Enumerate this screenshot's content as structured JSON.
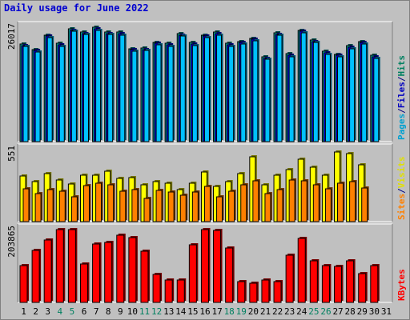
{
  "chart_data": {
    "title": "Daily usage for June 2022",
    "type": "bar",
    "categories": [
      "1",
      "2",
      "3",
      "4",
      "5",
      "6",
      "7",
      "8",
      "9",
      "10",
      "11",
      "12",
      "13",
      "14",
      "15",
      "16",
      "17",
      "18",
      "19",
      "20",
      "21",
      "22",
      "23",
      "24",
      "25",
      "26",
      "27",
      "28",
      "29",
      "30",
      "31"
    ],
    "weekend_days": [
      "4",
      "5",
      "11",
      "12",
      "18",
      "19",
      "25",
      "26"
    ],
    "panels": [
      {
        "id": "hits-files-pages",
        "max_label": "26017",
        "ymax": 26017,
        "legend": [
          {
            "text": "Pages",
            "color": "#00a0d0"
          },
          {
            "text": "/",
            "color": "#000080"
          },
          {
            "text": "Files",
            "color": "#0000c0"
          },
          {
            "text": "/",
            "color": "#000080"
          },
          {
            "text": "Hits",
            "color": "#008060"
          }
        ],
        "series": [
          {
            "name": "Hits",
            "color": "#00a0a0",
            "values": [
              21900,
              20700,
              23900,
              22000,
              25300,
              24600,
              25600,
              24600,
              24500,
              20900,
              21000,
              22300,
              22000,
              24200,
              22200,
              23900,
              24500,
              22000,
              22500,
              23200,
              19000,
              24400,
              19700,
              25000,
              22800,
              20200,
              19600,
              21500,
              22500,
              19300,
              0
            ]
          },
          {
            "name": "Files",
            "color": "#0000ff",
            "values": [
              21600,
              20400,
              23600,
              21700,
              25000,
              24300,
              25300,
              24300,
              24200,
              20600,
              20700,
              22000,
              21700,
              23900,
              21900,
              23600,
              24200,
              21700,
              22200,
              22900,
              18700,
              24100,
              19400,
              24700,
              22500,
              19900,
              19300,
              21200,
              22200,
              19000,
              0
            ]
          },
          {
            "name": "Pages",
            "color": "#00c0ff",
            "values": [
              21300,
              20100,
              23300,
              21400,
              24700,
              24000,
              25000,
              24000,
              23900,
              20300,
              20400,
              21700,
              21400,
              23600,
              21600,
              23300,
              23900,
              21400,
              21900,
              22600,
              18400,
              23800,
              19100,
              24400,
              22200,
              19600,
              19000,
              20900,
              21900,
              18700,
              0
            ]
          }
        ]
      },
      {
        "id": "visits-sites",
        "max_label": "551",
        "ymax": 551,
        "legend": [
          {
            "text": "Sites",
            "color": "#ff8000"
          },
          {
            "text": "/",
            "color": "#000080"
          },
          {
            "text": "Visits",
            "color": "#e0e000"
          }
        ],
        "series": [
          {
            "name": "Visits",
            "color": "#ffff00",
            "values": [
              340,
              300,
              360,
              310,
              280,
              350,
              350,
              380,
              325,
              330,
              275,
              300,
              290,
              240,
              290,
              370,
              265,
              300,
              360,
              485,
              275,
              350,
              390,
              465,
              410,
              350,
              520,
              510,
              425,
              0,
              0
            ]
          },
          {
            "name": "Sites",
            "color": "#ff8000",
            "values": [
              245,
              210,
              240,
              230,
              185,
              270,
              285,
              275,
              225,
              240,
              175,
              235,
              220,
              200,
              220,
              265,
              185,
              230,
              275,
              305,
              210,
              240,
              310,
              305,
              275,
              245,
              290,
              300,
              250,
              0,
              0
            ]
          }
        ]
      },
      {
        "id": "kbytes",
        "max_label": "203865",
        "ymax": 203865,
        "legend": [
          {
            "text": "KBytes",
            "color": "#ff0000"
          }
        ],
        "series": [
          {
            "name": "KBytes",
            "color": "#ff0000",
            "values": [
              100000,
              143000,
              170000,
              200000,
              200000,
              105000,
              160000,
              165000,
              185000,
              178000,
              140000,
              77000,
              62000,
              62000,
              158000,
              200000,
              198000,
              150000,
              56000,
              52000,
              62000,
              57000,
              130000,
              175000,
              115000,
              100000,
              98000,
              113000,
              80000,
              100000,
              0
            ]
          }
        ]
      }
    ]
  }
}
